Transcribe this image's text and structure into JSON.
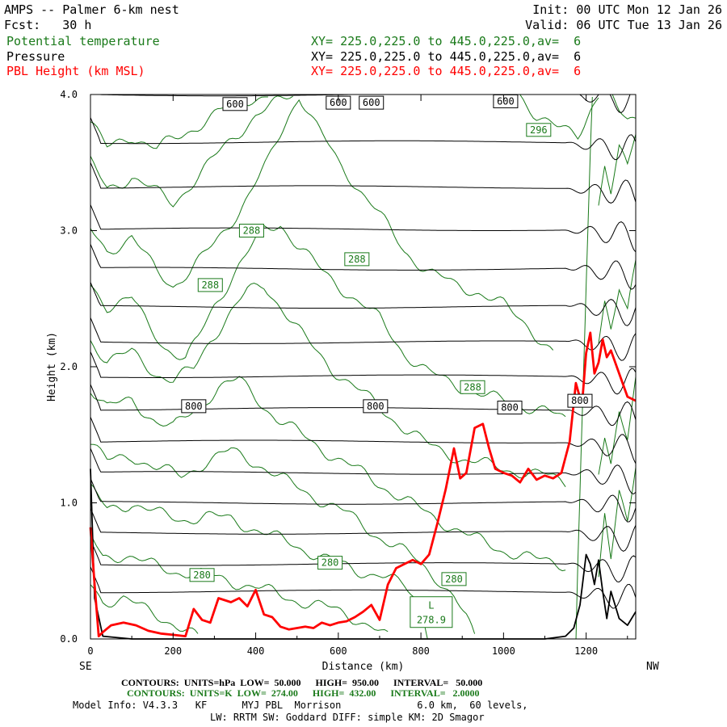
{
  "header": {
    "title": "AMPS -- Palmer 6-km nest",
    "forecast": "Fcst:   30 h",
    "init": "Init: 00 UTC Mon 12 Jan 26",
    "valid": "Valid: 06 UTC Tue 13 Jan 26",
    "fields": [
      {
        "label": "Potential temperature",
        "xy": "XY= 225.0,225.0 to 445.0,225.0,av=  6",
        "color": "#1a7a1a"
      },
      {
        "label": "Pressure",
        "xy": "XY= 225.0,225.0 to 445.0,225.0,av=  6",
        "color": "#000000"
      },
      {
        "label": "PBL Height (km MSL)",
        "xy": "XY= 225.0,225.0 to 445.0,225.0,av=  6",
        "color": "#ff0000"
      }
    ]
  },
  "chart_data": {
    "type": "line",
    "xlabel": "Distance (km)",
    "ylabel": "Height (km)",
    "xlim": [
      0,
      1320
    ],
    "ylim": [
      0,
      4.0
    ],
    "xticks": [
      "0",
      "200",
      "400",
      "600",
      "800",
      "1000",
      "1200"
    ],
    "yticks": [
      "0.0",
      "1.0",
      "2.0",
      "3.0",
      "4.0"
    ],
    "x_left_end_label": "SE",
    "x_right_end_label": "NW",
    "series": [
      {
        "name": "PBL Height (km MSL)",
        "color": "#ff0000",
        "x": [
          0,
          10,
          20,
          30,
          50,
          80,
          110,
          140,
          170,
          200,
          230,
          250,
          270,
          290,
          310,
          340,
          360,
          380,
          400,
          420,
          440,
          460,
          480,
          500,
          520,
          540,
          560,
          580,
          600,
          620,
          640,
          660,
          680,
          700,
          720,
          740,
          760,
          780,
          800,
          820,
          840,
          860,
          880,
          895,
          910,
          930,
          950,
          965,
          980,
          1000,
          1020,
          1040,
          1060,
          1080,
          1100,
          1120,
          1140,
          1160,
          1175,
          1190,
          1200,
          1210,
          1220,
          1230,
          1240,
          1250,
          1260,
          1280,
          1300,
          1320
        ],
        "y": [
          0.82,
          0.4,
          0.02,
          0.05,
          0.1,
          0.12,
          0.1,
          0.06,
          0.04,
          0.03,
          0.02,
          0.22,
          0.14,
          0.12,
          0.3,
          0.27,
          0.3,
          0.24,
          0.36,
          0.18,
          0.16,
          0.09,
          0.07,
          0.08,
          0.09,
          0.08,
          0.12,
          0.1,
          0.12,
          0.13,
          0.16,
          0.2,
          0.25,
          0.14,
          0.4,
          0.52,
          0.55,
          0.58,
          0.55,
          0.62,
          0.85,
          1.1,
          1.4,
          1.18,
          1.22,
          1.55,
          1.58,
          1.4,
          1.25,
          1.22,
          1.2,
          1.15,
          1.25,
          1.17,
          1.2,
          1.18,
          1.22,
          1.45,
          1.88,
          1.72,
          2.1,
          2.25,
          1.95,
          2.03,
          2.2,
          2.07,
          2.12,
          1.95,
          1.78,
          1.75
        ]
      },
      {
        "name": "Terrain",
        "color": "#000000",
        "x": [
          0,
          10,
          30,
          100,
          200,
          300,
          400,
          500,
          600,
          700,
          800,
          900,
          1000,
          1100,
          1150,
          1170,
          1185,
          1200,
          1210,
          1220,
          1230,
          1240,
          1250,
          1260,
          1280,
          1300,
          1320
        ],
        "y": [
          1.25,
          0.3,
          0.02,
          0,
          0,
          0,
          0,
          0,
          0,
          0,
          0,
          0,
          0,
          0,
          0.02,
          0.08,
          0.25,
          0.62,
          0.55,
          0.4,
          0.58,
          0.35,
          0.15,
          0.35,
          0.15,
          0.1,
          0.2
        ]
      }
    ],
    "pressure_contours": [
      {
        "y": 4.0
      },
      {
        "y": 3.65
      },
      {
        "y": 3.32
      },
      {
        "y": 3.01
      },
      {
        "y": 2.72
      },
      {
        "y": 2.44
      },
      {
        "y": 2.18
      },
      {
        "y": 1.93
      },
      {
        "y": 1.69
      },
      {
        "y": 1.45
      },
      {
        "y": 1.22
      },
      {
        "y": 1.0
      },
      {
        "y": 0.78
      },
      {
        "y": 0.55
      },
      {
        "y": 0.35
      }
    ],
    "pressure_labels": [
      {
        "text": "600",
        "x": 350,
        "y": 3.93
      },
      {
        "text": "600",
        "x": 600,
        "y": 3.94
      },
      {
        "text": "600",
        "x": 680,
        "y": 3.94
      },
      {
        "text": "600",
        "x": 1005,
        "y": 3.95
      },
      {
        "text": "800",
        "x": 250,
        "y": 1.71
      },
      {
        "text": "800",
        "x": 690,
        "y": 1.71
      },
      {
        "text": "800",
        "x": 1015,
        "y": 1.7
      },
      {
        "text": "800",
        "x": 1185,
        "y": 1.75
      }
    ],
    "theta_labels": [
      {
        "text": "296",
        "x": 1085,
        "y": 3.74
      },
      {
        "text": "288",
        "x": 390,
        "y": 3.0
      },
      {
        "text": "288",
        "x": 645,
        "y": 2.79
      },
      {
        "text": "288",
        "x": 290,
        "y": 2.6
      },
      {
        "text": "288",
        "x": 925,
        "y": 1.85
      },
      {
        "text": "280",
        "x": 580,
        "y": 0.56
      },
      {
        "text": "280",
        "x": 270,
        "y": 0.47
      },
      {
        "text": "280",
        "x": 880,
        "y": 0.44
      }
    ],
    "minimum_markers": [
      {
        "letter": "L",
        "value": "278.9",
        "x": 825,
        "y": 0.15
      }
    ],
    "theta_contours": [
      [
        [
          0,
          3.8
        ],
        [
          40,
          3.6
        ],
        [
          100,
          3.7
        ],
        [
          160,
          3.6
        ],
        [
          220,
          3.7
        ],
        [
          300,
          3.85
        ],
        [
          360,
          3.95
        ],
        [
          430,
          4.0
        ]
      ],
      [
        [
          0,
          3.5
        ],
        [
          40,
          3.3
        ],
        [
          100,
          3.4
        ],
        [
          200,
          3.2
        ],
        [
          260,
          3.4
        ],
        [
          320,
          3.6
        ],
        [
          400,
          3.85
        ],
        [
          490,
          4.0
        ]
      ],
      [
        [
          0,
          3.0
        ],
        [
          40,
          2.85
        ],
        [
          100,
          2.95
        ],
        [
          160,
          2.7
        ],
        [
          200,
          2.6
        ],
        [
          240,
          2.7
        ],
        [
          300,
          2.9
        ],
        [
          360,
          3.15
        ],
        [
          430,
          3.5
        ],
        [
          480,
          3.85
        ],
        [
          505,
          4.0
        ],
        [
          540,
          3.8
        ],
        [
          600,
          3.5
        ],
        [
          680,
          3.2
        ],
        [
          760,
          2.85
        ],
        [
          820,
          2.7
        ],
        [
          880,
          2.6
        ],
        [
          940,
          2.55
        ],
        [
          1000,
          2.45
        ],
        [
          1060,
          2.3
        ],
        [
          1120,
          2.1
        ]
      ],
      [
        [
          0,
          2.6
        ],
        [
          40,
          2.45
        ],
        [
          100,
          2.5
        ],
        [
          140,
          2.3
        ],
        [
          180,
          2.15
        ],
        [
          230,
          2.05
        ],
        [
          260,
          2.2
        ],
        [
          300,
          2.45
        ],
        [
          360,
          2.75
        ],
        [
          420,
          3.0
        ],
        [
          460,
          3.05
        ],
        [
          500,
          2.9
        ],
        [
          560,
          2.7
        ],
        [
          620,
          2.55
        ],
        [
          700,
          2.35
        ],
        [
          760,
          2.1
        ],
        [
          820,
          1.95
        ],
        [
          900,
          1.85
        ],
        [
          960,
          1.78
        ],
        [
          1040,
          1.72
        ],
        [
          1100,
          1.68
        ],
        [
          1150,
          1.6
        ]
      ],
      [
        [
          0,
          2.2
        ],
        [
          40,
          2.05
        ],
        [
          100,
          2.1
        ],
        [
          160,
          1.95
        ],
        [
          200,
          1.9
        ],
        [
          250,
          1.98
        ],
        [
          290,
          2.2
        ],
        [
          340,
          2.4
        ],
        [
          380,
          2.55
        ],
        [
          420,
          2.6
        ],
        [
          460,
          2.45
        ],
        [
          520,
          2.2
        ],
        [
          580,
          2.0
        ],
        [
          640,
          1.85
        ],
        [
          700,
          1.7
        ],
        [
          760,
          1.55
        ],
        [
          820,
          1.42
        ],
        [
          900,
          1.32
        ],
        [
          1000,
          1.25
        ],
        [
          1100,
          1.2
        ],
        [
          1150,
          1.15
        ]
      ],
      [
        [
          0,
          1.85
        ],
        [
          40,
          1.7
        ],
        [
          100,
          1.75
        ],
        [
          160,
          1.6
        ],
        [
          200,
          1.55
        ],
        [
          260,
          1.7
        ],
        [
          310,
          1.85
        ],
        [
          360,
          1.9
        ],
        [
          400,
          1.78
        ],
        [
          450,
          1.62
        ],
        [
          520,
          1.48
        ],
        [
          600,
          1.32
        ],
        [
          680,
          1.18
        ],
        [
          760,
          1.02
        ],
        [
          840,
          0.88
        ],
        [
          920,
          0.75
        ],
        [
          1000,
          0.65
        ],
        [
          1080,
          0.58
        ],
        [
          1150,
          0.55
        ]
      ],
      [
        [
          0,
          1.45
        ],
        [
          40,
          1.3
        ],
        [
          100,
          1.35
        ],
        [
          160,
          1.25
        ],
        [
          220,
          1.2
        ],
        [
          280,
          1.3
        ],
        [
          340,
          1.38
        ],
        [
          400,
          1.3
        ],
        [
          460,
          1.18
        ],
        [
          540,
          1.05
        ],
        [
          620,
          0.92
        ],
        [
          700,
          0.75
        ],
        [
          780,
          0.6
        ],
        [
          840,
          0.45
        ],
        [
          880,
          0.3
        ],
        [
          910,
          0.15
        ],
        [
          930,
          0.0
        ]
      ],
      [
        [
          0,
          1.1
        ],
        [
          40,
          0.95
        ],
        [
          100,
          1.0
        ],
        [
          160,
          0.92
        ],
        [
          220,
          0.88
        ],
        [
          280,
          0.9
        ],
        [
          340,
          0.88
        ],
        [
          420,
          0.78
        ],
        [
          500,
          0.68
        ],
        [
          580,
          0.58
        ],
        [
          640,
          0.5
        ],
        [
          700,
          0.48
        ],
        [
          760,
          0.38
        ],
        [
          800,
          0.25
        ],
        [
          820,
          0.0
        ]
      ],
      [
        [
          0,
          0.75
        ],
        [
          30,
          0.6
        ],
        [
          80,
          0.62
        ],
        [
          140,
          0.55
        ],
        [
          200,
          0.5
        ],
        [
          260,
          0.48
        ],
        [
          320,
          0.44
        ],
        [
          400,
          0.38
        ],
        [
          480,
          0.3
        ],
        [
          560,
          0.24
        ],
        [
          620,
          0.18
        ],
        [
          680,
          0.1
        ],
        [
          720,
          0.0
        ]
      ],
      [
        [
          0,
          0.4
        ],
        [
          30,
          0.28
        ],
        [
          80,
          0.3
        ],
        [
          140,
          0.2
        ],
        [
          200,
          0.12
        ],
        [
          240,
          0.05
        ],
        [
          260,
          0.0
        ]
      ],
      [
        [
          1175,
          0.0
        ],
        [
          1180,
          0.6
        ],
        [
          1185,
          1.1
        ],
        [
          1190,
          1.6
        ],
        [
          1195,
          2.1
        ],
        [
          1200,
          2.6
        ],
        [
          1205,
          3.1
        ],
        [
          1210,
          3.6
        ],
        [
          1215,
          4.0
        ]
      ],
      [
        [
          1230,
          0.4
        ],
        [
          1245,
          0.9
        ],
        [
          1260,
          0.6
        ],
        [
          1280,
          1.1
        ],
        [
          1300,
          0.9
        ],
        [
          1320,
          1.3
        ]
      ],
      [
        [
          1230,
          1.2
        ],
        [
          1245,
          1.5
        ],
        [
          1260,
          1.3
        ],
        [
          1280,
          1.7
        ],
        [
          1300,
          1.5
        ],
        [
          1320,
          1.9
        ]
      ],
      [
        [
          1230,
          2.2
        ],
        [
          1245,
          2.5
        ],
        [
          1260,
          2.3
        ],
        [
          1280,
          2.6
        ],
        [
          1300,
          2.4
        ],
        [
          1320,
          2.75
        ]
      ],
      [
        [
          1230,
          3.2
        ],
        [
          1245,
          3.5
        ],
        [
          1260,
          3.3
        ],
        [
          1280,
          3.6
        ],
        [
          1300,
          3.45
        ],
        [
          1320,
          3.7
        ]
      ],
      [
        [
          1040,
          4.0
        ],
        [
          1080,
          3.85
        ],
        [
          1130,
          3.75
        ],
        [
          1180,
          3.7
        ],
        [
          1210,
          3.9
        ],
        [
          1230,
          4.0
        ]
      ],
      [
        [
          1255,
          4.0
        ],
        [
          1280,
          3.88
        ],
        [
          1300,
          3.82
        ],
        [
          1320,
          3.85
        ]
      ]
    ]
  },
  "footer": {
    "line1": "CONTOURS:  UNITS=hPa  LOW=  50.000      HIGH=  950.00      INTERVAL=   50.000",
    "line2": "CONTOURS:  UNITS=K  LOW=  274.00      HIGH=  432.00      INTERVAL=   2.0000",
    "line3": "Model Info: V4.3.3   KF      MYJ PBL  Morrison             6.0 km,  60 levels,",
    "line4": "LW: RRTM SW: Goddard DIFF: simple KM: 2D Smagor"
  }
}
